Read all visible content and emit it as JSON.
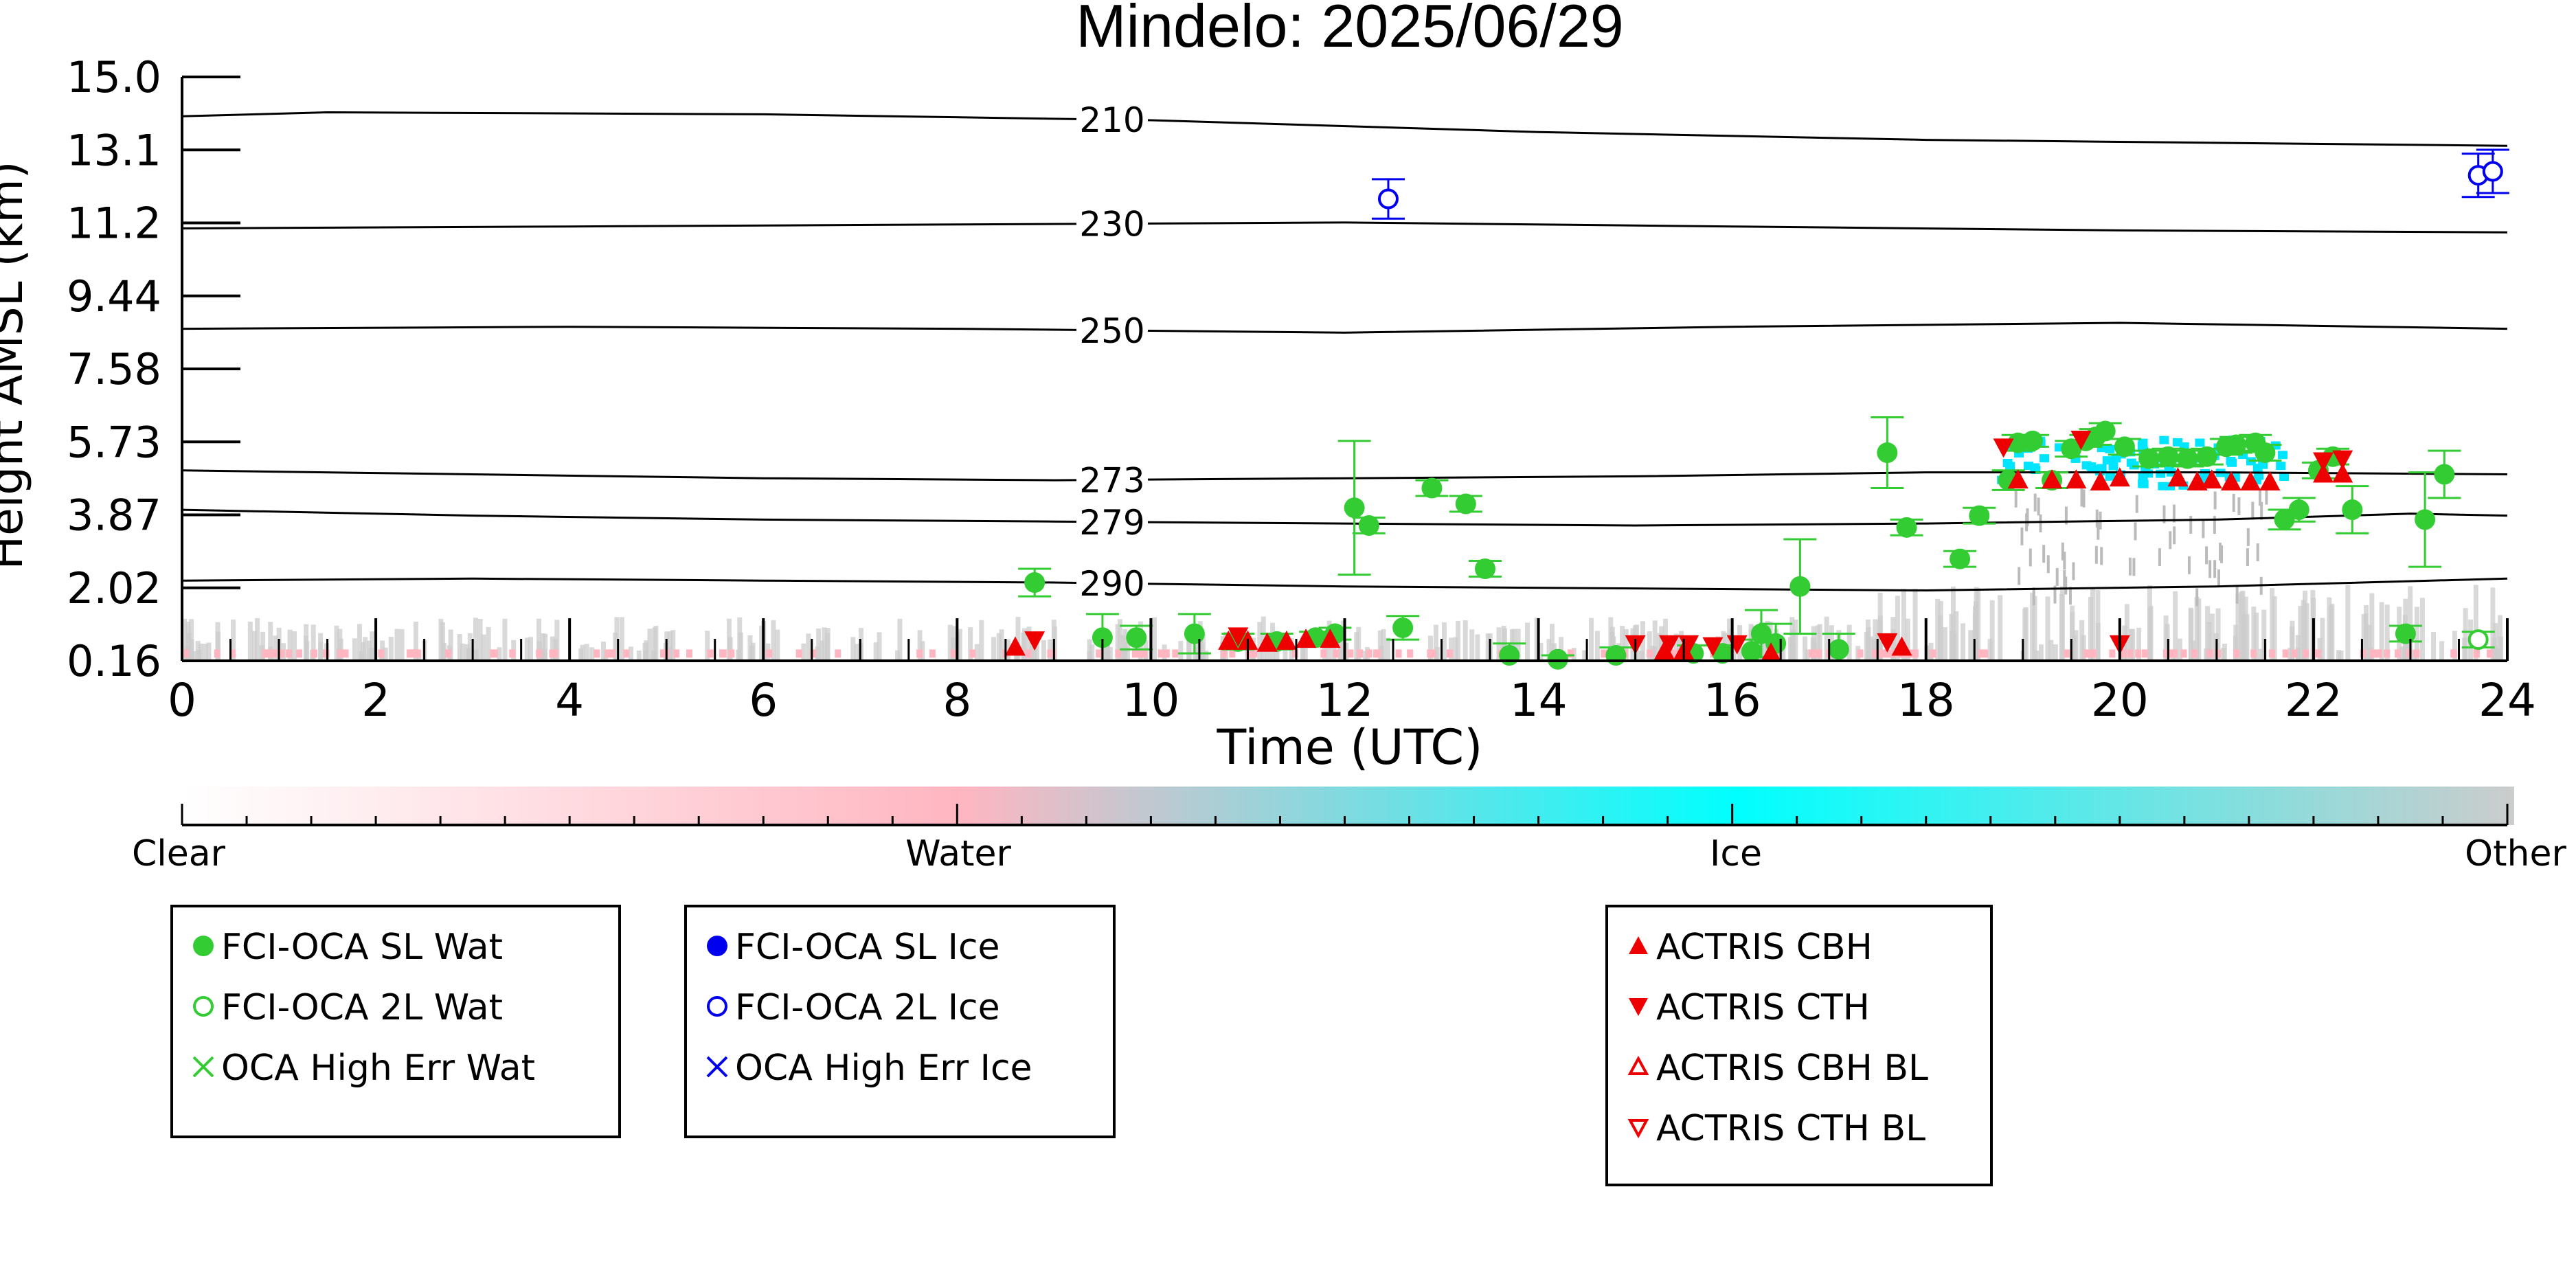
{
  "chart_data": {
    "type": "scatter",
    "title": "Mindelo: 2025/06/29",
    "xlabel": "Time (UTC)",
    "ylabel": "Height AMSL (km)",
    "xlim": [
      0,
      24
    ],
    "ylim": [
      0.16,
      15.0
    ],
    "xticks": [
      "0",
      "2",
      "4",
      "6",
      "8",
      "10",
      "12",
      "14",
      "16",
      "18",
      "20",
      "22",
      "24"
    ],
    "yticks": [
      "0.16",
      "2.02",
      "3.87",
      "5.73",
      "7.58",
      "9.44",
      "11.2",
      "13.1",
      "15.0"
    ],
    "grid": false,
    "isotherms": [
      {
        "label": "210",
        "points": [
          [
            0,
            14.0
          ],
          [
            1.5,
            14.1
          ],
          [
            6,
            14.05
          ],
          [
            10,
            13.9
          ],
          [
            14,
            13.6
          ],
          [
            18,
            13.4
          ],
          [
            22,
            13.3
          ],
          [
            24,
            13.25
          ]
        ]
      },
      {
        "label": "230",
        "points": [
          [
            0,
            11.15
          ],
          [
            4,
            11.2
          ],
          [
            8,
            11.25
          ],
          [
            12,
            11.3
          ],
          [
            16,
            11.2
          ],
          [
            20,
            11.1
          ],
          [
            24,
            11.05
          ]
        ]
      },
      {
        "label": "250",
        "points": [
          [
            0,
            8.6
          ],
          [
            4,
            8.65
          ],
          [
            8,
            8.6
          ],
          [
            12,
            8.5
          ],
          [
            16,
            8.65
          ],
          [
            20,
            8.75
          ],
          [
            24,
            8.6
          ]
        ]
      },
      {
        "label": "273",
        "points": [
          [
            0,
            5.0
          ],
          [
            3,
            4.9
          ],
          [
            6,
            4.8
          ],
          [
            9,
            4.75
          ],
          [
            12,
            4.8
          ],
          [
            15,
            4.85
          ],
          [
            18,
            4.95
          ],
          [
            21,
            4.95
          ],
          [
            24,
            4.9
          ]
        ]
      },
      {
        "label": "279",
        "points": [
          [
            0,
            4.0
          ],
          [
            3,
            3.85
          ],
          [
            6,
            3.75
          ],
          [
            9,
            3.7
          ],
          [
            12,
            3.65
          ],
          [
            15,
            3.6
          ],
          [
            18,
            3.65
          ],
          [
            21,
            3.75
          ],
          [
            23,
            3.9
          ],
          [
            24,
            3.85
          ]
        ]
      },
      {
        "label": "290",
        "points": [
          [
            0,
            2.2
          ],
          [
            3,
            2.25
          ],
          [
            6,
            2.2
          ],
          [
            9,
            2.15
          ],
          [
            12,
            2.05
          ],
          [
            15,
            2.0
          ],
          [
            18,
            1.95
          ],
          [
            21,
            2.05
          ],
          [
            24,
            2.25
          ]
        ]
      }
    ],
    "series": [
      {
        "name": "FCI-OCA SL Wat",
        "color": "#33cc33",
        "marker": "filled-circle",
        "x": [
          8.8,
          9.5,
          9.85,
          10.45,
          10.9,
          11.3,
          11.7,
          11.9,
          12.1,
          12.25,
          12.6,
          12.9,
          13.25,
          13.45,
          13.7,
          14.2,
          14.8,
          15.6,
          15.9,
          16.2,
          16.3,
          16.45,
          16.7,
          17.1,
          17.6,
          17.8,
          18.35,
          18.55,
          18.85,
          18.95,
          19.1,
          19.3,
          19.5,
          19.65,
          19.75,
          19.85,
          20.05,
          20.3,
          20.5,
          20.7,
          20.9,
          21.1,
          21.2,
          21.4,
          21.5,
          21.7,
          21.85,
          22.05,
          22.2,
          22.4,
          22.95,
          23.15,
          23.35
        ],
        "y": [
          2.15,
          0.75,
          0.75,
          0.85,
          0.65,
          0.65,
          0.75,
          0.85,
          4.05,
          3.6,
          1.0,
          4.55,
          4.15,
          2.5,
          0.3,
          0.2,
          0.3,
          0.35,
          0.35,
          0.4,
          0.85,
          0.6,
          2.05,
          0.45,
          5.45,
          3.55,
          2.75,
          3.85,
          4.75,
          5.7,
          5.75,
          4.75,
          5.55,
          5.75,
          5.85,
          6.0,
          5.6,
          5.3,
          5.35,
          5.3,
          5.35,
          5.6,
          5.65,
          5.7,
          5.45,
          3.75,
          4.0,
          5.0,
          5.35,
          4.0,
          0.85,
          3.75,
          4.9
        ],
        "yerr": [
          0.35,
          0.6,
          0.3,
          0.5,
          0.2,
          0.2,
          0.15,
          0.15,
          1.7,
          0.2,
          0.3,
          0.2,
          0.2,
          0.2,
          0.3,
          0.1,
          0.2,
          0.2,
          0.2,
          0.3,
          0.6,
          0.5,
          1.2,
          0.4,
          0.9,
          0.2,
          0.2,
          0.2,
          0.25,
          0.2,
          0.15,
          0.2,
          0.2,
          0.15,
          0.2,
          0.2,
          0.2,
          0.2,
          0.2,
          0.2,
          0.2,
          0.2,
          0.2,
          0.2,
          0.2,
          0.25,
          0.3,
          0.2,
          0.2,
          0.6,
          0.2,
          1.2,
          0.6
        ]
      },
      {
        "name": "FCI-OCA 2L Wat",
        "color": "#33cc33",
        "marker": "open-circle",
        "x": [
          23.7
        ],
        "y": [
          0.7
        ],
        "yerr": [
          0.2
        ]
      },
      {
        "name": "OCA High Err Wat",
        "color": "#33cc33",
        "marker": "x",
        "x": [],
        "y": []
      },
      {
        "name": "FCI-OCA SL Ice",
        "color": "#0000ee",
        "marker": "filled-circle",
        "x": [],
        "y": []
      },
      {
        "name": "FCI-OCA 2L Ice",
        "color": "#0000ee",
        "marker": "open-circle",
        "x": [
          12.45,
          23.7,
          23.85
        ],
        "y": [
          11.9,
          12.5,
          12.6
        ],
        "yerr": [
          0.5,
          0.55,
          0.55
        ]
      },
      {
        "name": "OCA High Err Ice",
        "color": "#0000ee",
        "marker": "x",
        "x": [],
        "y": []
      },
      {
        "name": "ACTRIS CBH",
        "color": "#ee0000",
        "marker": "triangle-up",
        "x": [
          8.6,
          10.8,
          11.0,
          11.2,
          11.4,
          11.6,
          11.85,
          15.3,
          15.5,
          16.4,
          17.75,
          18.95,
          19.3,
          19.55,
          19.8,
          20.0,
          20.6,
          20.8,
          20.95,
          21.15,
          21.35,
          21.55,
          22.1,
          22.3
        ],
        "y": [
          0.5,
          0.65,
          0.65,
          0.6,
          0.65,
          0.7,
          0.7,
          0.4,
          0.4,
          0.35,
          0.5,
          4.75,
          4.75,
          4.75,
          4.7,
          4.8,
          4.8,
          4.7,
          4.75,
          4.7,
          4.7,
          4.7,
          4.9,
          4.9
        ]
      },
      {
        "name": "ACTRIS CTH",
        "color": "#ee0000",
        "marker": "triangle-down",
        "x": [
          8.8,
          10.9,
          15.0,
          15.35,
          15.55,
          15.8,
          16.05,
          17.6,
          18.8,
          19.6,
          20.0,
          22.1,
          22.3
        ],
        "y": [
          0.7,
          0.8,
          0.6,
          0.6,
          0.6,
          0.55,
          0.6,
          0.65,
          5.6,
          5.8,
          0.6,
          5.25,
          5.3
        ]
      },
      {
        "name": "ACTRIS CBH BL",
        "color": "#ee0000",
        "marker": "open-triangle-up",
        "x": [],
        "y": []
      },
      {
        "name": "ACTRIS CTH BL",
        "color": "#ee0000",
        "marker": "open-triangle-down",
        "x": [],
        "y": []
      }
    ],
    "colorbar": {
      "labels": [
        "Clear",
        "Water",
        "Ice",
        "Other"
      ],
      "colors": [
        "#ffffff",
        "#ffb6c1",
        "#00ffff",
        "#cccccc"
      ]
    }
  }
}
